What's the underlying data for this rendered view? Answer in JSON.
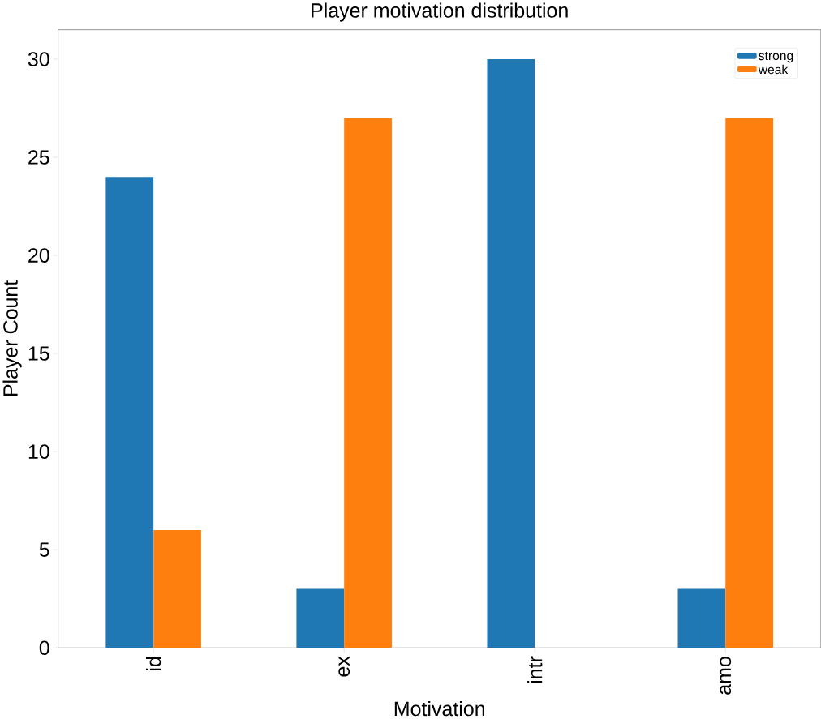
{
  "chart_data": {
    "type": "bar",
    "title": "Player motivation distribution",
    "xlabel": "Motivation",
    "ylabel": "Player Count",
    "categories": [
      "id",
      "ex",
      "intr",
      "amo"
    ],
    "series": [
      {
        "name": "strong",
        "color": "#1f77b4",
        "values": [
          24,
          3,
          30,
          3
        ]
      },
      {
        "name": "weak",
        "color": "#ff7f0e",
        "values": [
          6,
          27,
          0,
          27
        ]
      }
    ],
    "ylim": [
      0,
      31.5
    ],
    "yticks": [
      0,
      5,
      10,
      15,
      20,
      25,
      30
    ],
    "grid": false,
    "legend": "top right"
  }
}
